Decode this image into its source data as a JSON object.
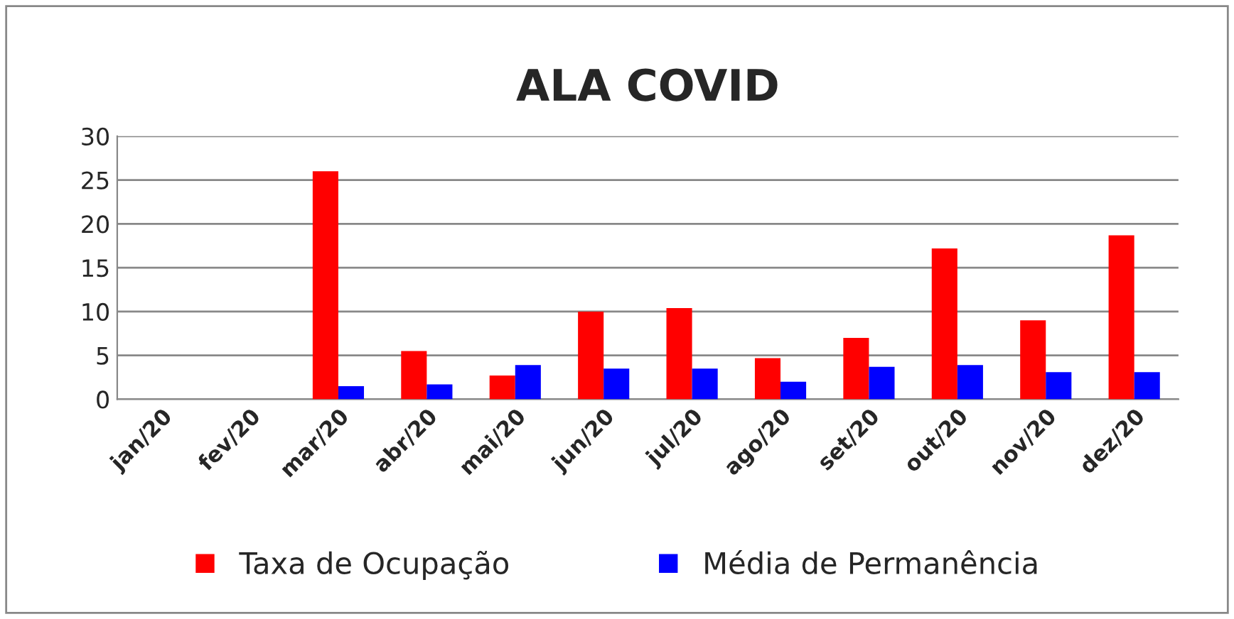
{
  "chart_data": {
    "type": "bar",
    "title": "ALA COVID",
    "categories": [
      "jan/20",
      "fev/20",
      "mar/20",
      "abr/20",
      "mai/20",
      "jun/20",
      "jul/20",
      "ago/20",
      "set/20",
      "out/20",
      "nov/20",
      "dez/20"
    ],
    "series": [
      {
        "name": "Taxa de Ocupação",
        "color": "#ff0000",
        "values": [
          null,
          null,
          26.0,
          5.5,
          2.7,
          10.0,
          10.4,
          4.7,
          7.0,
          17.2,
          9.0,
          18.7
        ]
      },
      {
        "name": "Média de Permanência",
        "color": "#0000ff",
        "values": [
          null,
          null,
          1.5,
          1.7,
          3.9,
          3.5,
          3.5,
          2.0,
          3.7,
          3.9,
          3.1,
          3.1
        ]
      }
    ],
    "ylim": [
      0,
      30
    ],
    "yticks": [
      0,
      5,
      10,
      15,
      20,
      25,
      30
    ],
    "grid": "y",
    "legend": "bottom"
  }
}
